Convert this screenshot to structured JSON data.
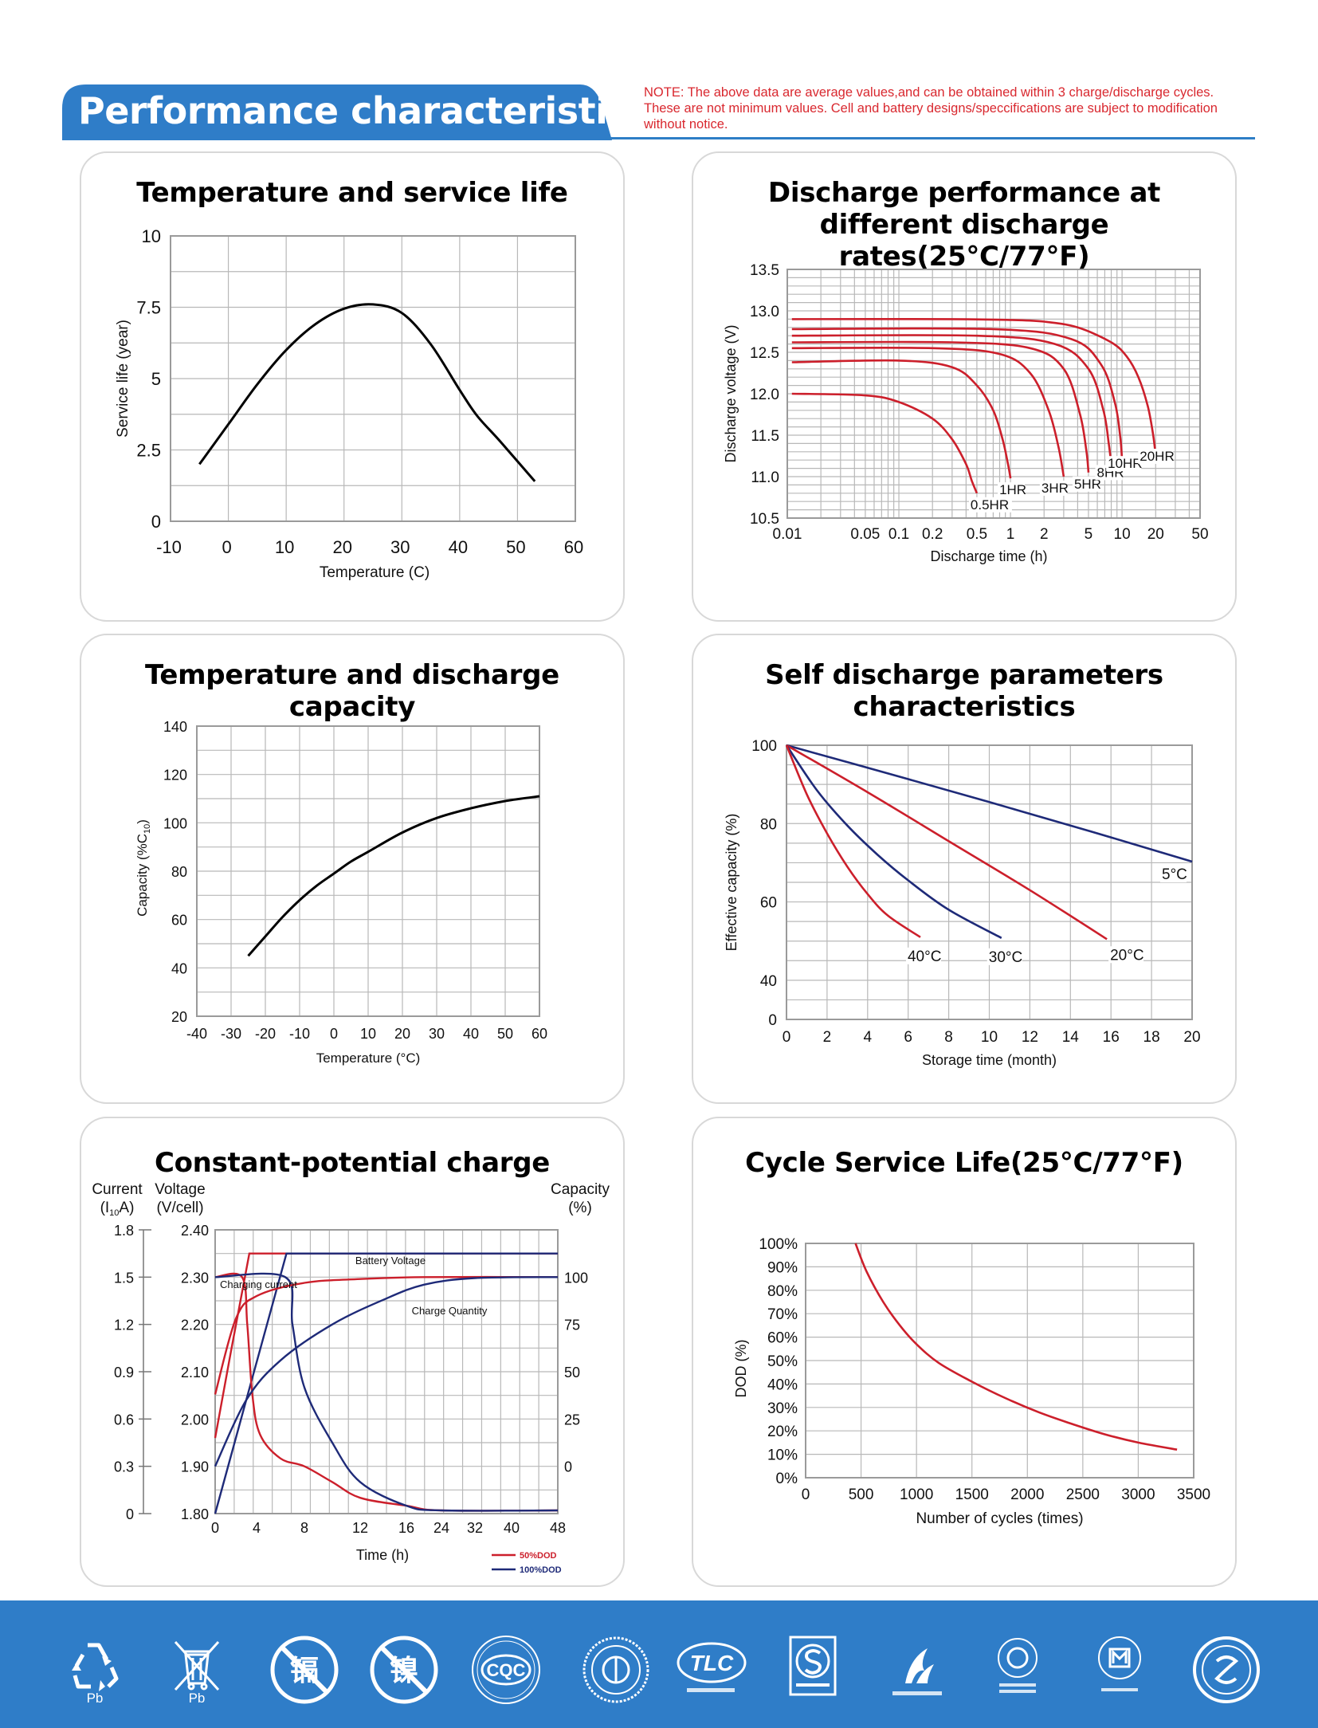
{
  "header": {
    "title": "Performance characteristics",
    "note_lines": [
      "NOTE: The above data are average values,and can be obtained within 3 charge/discharge cycles.",
      "These are not minimum values. Cell and battery designs/speccifications are subject to modification",
      "without notice."
    ]
  },
  "colors": {
    "brand_blue": "#2f7dc8",
    "red": "#cc1f2b",
    "navy": "#1e2a78",
    "grid": "#b8b8b8",
    "note_red": "#d9282f"
  },
  "chart_data": [
    {
      "id": "temp_life",
      "type": "line",
      "title": "Temperature and service life",
      "xlabel": "Temperature (C)",
      "ylabel": "Service life (year)",
      "xlim": [
        -10,
        60
      ],
      "ylim": [
        0,
        10
      ],
      "xticks": [
        "-10",
        "0",
        "10",
        "20",
        "30",
        "40",
        "50",
        "60"
      ],
      "yticks": [
        "0",
        "2.5",
        "5",
        "7.5",
        "10"
      ],
      "grid": true,
      "series": [
        {
          "color": "#000000",
          "x": [
            -5,
            0,
            5,
            10,
            15,
            20,
            25,
            30,
            35,
            40,
            43,
            47,
            53
          ],
          "y": [
            2.0,
            3.4,
            4.8,
            6.0,
            6.9,
            7.45,
            7.6,
            7.3,
            6.2,
            4.6,
            3.7,
            2.8,
            1.4
          ]
        }
      ]
    },
    {
      "id": "discharge_rates",
      "type": "line",
      "title": "Discharge performance at",
      "title2": "different discharge rates(25°C/77°F)",
      "xlabel": "Discharge time (h)",
      "ylabel": "Discharge voltage (V)",
      "xscale": "log",
      "xlim": [
        0.01,
        50
      ],
      "ylim": [
        10.5,
        13.5
      ],
      "xticks": [
        "0.01",
        "0.05",
        "0.1",
        "0.2",
        "0.5",
        "1",
        "2",
        "5",
        "10",
        "20",
        "50"
      ],
      "yticks": [
        "10.5",
        "11.0",
        "11.5",
        "12.0",
        "12.5",
        "13.0",
        "13.5"
      ],
      "grid": true,
      "series": [
        {
          "name": "0.5HR",
          "color": "#cc1f2b",
          "x": [
            0.011,
            0.05,
            0.1,
            0.2,
            0.3,
            0.4,
            0.45,
            0.5
          ],
          "y": [
            12.0,
            11.98,
            11.9,
            11.7,
            11.45,
            11.15,
            10.95,
            10.8
          ]
        },
        {
          "name": "1HR",
          "color": "#cc1f2b",
          "x": [
            0.011,
            0.1,
            0.3,
            0.5,
            0.7,
            0.85,
            0.95,
            1.0
          ],
          "y": [
            12.38,
            12.4,
            12.32,
            12.1,
            11.8,
            11.45,
            11.15,
            10.98
          ]
        },
        {
          "name": "3HR",
          "color": "#cc1f2b",
          "x": [
            0.011,
            0.2,
            0.8,
            1.5,
            2.2,
            2.7,
            3.0
          ],
          "y": [
            12.55,
            12.55,
            12.48,
            12.25,
            11.8,
            11.35,
            11.0
          ]
        },
        {
          "name": "5HR",
          "color": "#cc1f2b",
          "x": [
            0.011,
            0.3,
            1.5,
            3.0,
            4.2,
            4.8,
            5.0
          ],
          "y": [
            12.62,
            12.62,
            12.55,
            12.3,
            11.75,
            11.3,
            11.05
          ]
        },
        {
          "name": "8HR",
          "color": "#cc1f2b",
          "x": [
            0.011,
            0.5,
            2.5,
            5.0,
            6.8,
            7.6,
            8.0
          ],
          "y": [
            12.7,
            12.7,
            12.6,
            12.3,
            11.8,
            11.4,
            11.15
          ]
        },
        {
          "name": "10HR",
          "color": "#cc1f2b",
          "x": [
            0.011,
            0.7,
            3.5,
            6.5,
            8.6,
            9.6,
            10.0
          ],
          "y": [
            12.78,
            12.78,
            12.66,
            12.35,
            11.9,
            11.5,
            11.2
          ]
        },
        {
          "name": "20HR",
          "color": "#cc1f2b",
          "x": [
            0.011,
            0.3,
            1.0,
            2.0,
            4.0,
            8.0,
            11.0,
            14.0,
            17.0,
            19.0,
            20.0
          ],
          "y": [
            12.9,
            12.9,
            12.89,
            12.87,
            12.8,
            12.62,
            12.45,
            12.2,
            11.85,
            11.5,
            11.25
          ]
        }
      ]
    },
    {
      "id": "temp_capacity",
      "type": "line",
      "title": "Temperature and discharge capacity",
      "xlabel": "Temperature (°C)",
      "ylabel": "Capacity (%C",
      "ylabel_sub": "10",
      "ylabel_end": ")",
      "xlim": [
        -40,
        60
      ],
      "ylim": [
        20,
        140
      ],
      "xticks": [
        "-40",
        "-30",
        "-20",
        "-10",
        "0",
        "10",
        "20",
        "30",
        "40",
        "50",
        "60"
      ],
      "yticks": [
        "20",
        "40",
        "60",
        "80",
        "100",
        "120",
        "140"
      ],
      "grid": true,
      "series": [
        {
          "color": "#000000",
          "x": [
            -25,
            -20,
            -15,
            -10,
            -5,
            0,
            5,
            10,
            20,
            30,
            40,
            50,
            60
          ],
          "y": [
            45,
            53,
            61,
            68,
            74,
            79,
            84,
            88,
            96,
            102,
            106,
            109,
            111
          ]
        }
      ]
    },
    {
      "id": "self_discharge",
      "type": "line",
      "title": "Self discharge parameters characteristics",
      "xlabel": "Storage time (month)",
      "ylabel": "Effective capacity (%)",
      "xlim": [
        0,
        20
      ],
      "ylim": [
        30,
        100
      ],
      "yticks_shown": [
        "0",
        "40",
        "60",
        "80",
        "100"
      ],
      "xticks": [
        "0",
        "2",
        "4",
        "6",
        "8",
        "10",
        "12",
        "14",
        "16",
        "18",
        "20"
      ],
      "grid": true,
      "series": [
        {
          "name": "5°C",
          "color": "#1e2a78",
          "x": [
            0,
            5,
            10,
            15,
            20
          ],
          "y": [
            100,
            92.8,
            85.5,
            78,
            70.3
          ]
        },
        {
          "name": "20°C",
          "color": "#cc1f2b",
          "x": [
            0,
            4,
            8,
            12,
            15.8
          ],
          "y": [
            100,
            88,
            75.5,
            63,
            50.5
          ]
        },
        {
          "name": "30°C",
          "color": "#1e2a78",
          "x": [
            0,
            1.5,
            3,
            4.5,
            6,
            8,
            10.6
          ],
          "y": [
            100,
            88.5,
            79.5,
            72,
            65.5,
            58,
            50.8
          ]
        },
        {
          "name": "40°C",
          "color": "#cc1f2b",
          "x": [
            0,
            1,
            2,
            3,
            4,
            5,
            6.6
          ],
          "y": [
            100,
            87.5,
            77.5,
            69,
            62,
            56.5,
            51
          ]
        }
      ]
    },
    {
      "id": "constant_charge",
      "type": "line",
      "title": "Constant-potential charge",
      "xlabel": "Time (h)",
      "left_axis1_title": [
        "Current",
        "(I",
        "10",
        "A)"
      ],
      "left_axis2_title": [
        "Voltage",
        "(V/cell)"
      ],
      "right_axis_title": [
        "Capacity",
        "(%)"
      ],
      "current_ticks": [
        "0",
        "0.3",
        "0.6",
        "0.9",
        "1.2",
        "1.5",
        "1.8"
      ],
      "voltage_ticks": [
        "1.80",
        "1.90",
        "2.00",
        "2.10",
        "2.20",
        "2.30",
        "2.40"
      ],
      "capacity_ticks": [
        "0",
        "25",
        "50",
        "75",
        "100"
      ],
      "xticks": [
        "0",
        "4",
        "8",
        "12",
        "16",
        "24",
        "32",
        "40",
        "48"
      ],
      "annotations": [
        "Battery Voltage",
        "Charging current",
        "Charge Quantity"
      ],
      "legend": [
        "50%DOD",
        "100%DOD"
      ],
      "grid": true
    },
    {
      "id": "cycle_life",
      "type": "line",
      "title": "Cycle Service Life(25°C/77°F)",
      "xlabel": "Number of cycles (times)",
      "ylabel": "DOD (%)",
      "xlim": [
        0,
        3500
      ],
      "ylim": [
        0,
        100
      ],
      "xticks": [
        "0",
        "500",
        "1000",
        "1500",
        "2000",
        "2500",
        "3000",
        "3500"
      ],
      "yticks": [
        "0%",
        "10%",
        "20%",
        "30%",
        "40%",
        "50%",
        "60%",
        "70%",
        "80%",
        "90%",
        "100%"
      ],
      "grid": true,
      "series": [
        {
          "color": "#cc1f2b",
          "x": [
            450,
            550,
            700,
            850,
            1000,
            1200,
            1500,
            1800,
            2100,
            2400,
            2700,
            3000,
            3350
          ],
          "y": [
            100,
            88,
            75,
            65,
            57,
            49,
            41,
            34,
            28,
            23,
            18.5,
            15,
            12
          ]
        }
      ]
    }
  ],
  "footer": {
    "logos": [
      "recycle-pb-icon",
      "no-bin-pb-icon",
      "no-cadmium-icon",
      "no-nickel-icon",
      "cqc-icon",
      "certification-seal-icon",
      "tlc-icon",
      "quality-s-icon",
      "hitech-icon",
      "pv-supplier-icon",
      "exempt-product-icon",
      "famous-brand-icon"
    ],
    "pb_label": "Pb",
    "cadmium_char": "镉",
    "nickel_char": "镍",
    "cqc_text": "CQC",
    "tlc_text": "TLC"
  }
}
